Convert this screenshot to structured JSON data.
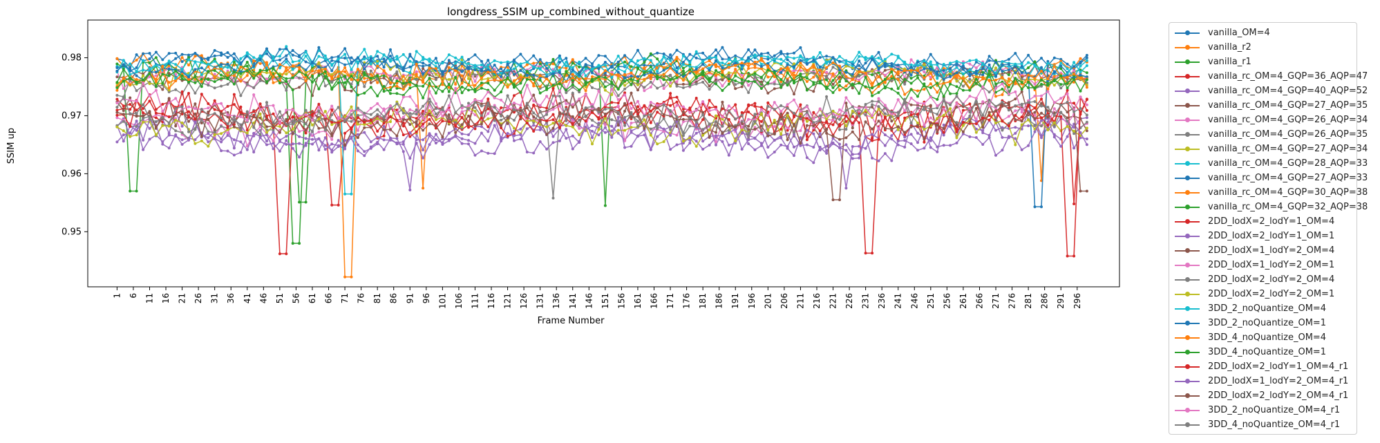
{
  "chart_data": {
    "type": "line",
    "title": "longdress_SSIM up_combined_without_quantize",
    "xlabel": "Frame Number",
    "ylabel": "SSIM up",
    "xlim": [
      -8,
      309
    ],
    "ylim": [
      0.9405,
      0.9865
    ],
    "x_ticks": [
      1,
      6,
      11,
      16,
      21,
      26,
      31,
      36,
      41,
      46,
      51,
      56,
      61,
      66,
      71,
      76,
      81,
      86,
      91,
      96,
      101,
      106,
      111,
      116,
      121,
      126,
      131,
      136,
      141,
      146,
      151,
      156,
      161,
      166,
      171,
      176,
      181,
      186,
      191,
      196,
      201,
      206,
      211,
      216,
      221,
      226,
      231,
      236,
      241,
      246,
      251,
      256,
      261,
      266,
      271,
      276,
      281,
      286,
      291,
      296
    ],
    "y_ticks": [
      0.95,
      0.96,
      0.97,
      0.98
    ],
    "x_first": 1,
    "x_last": 300,
    "grid": false,
    "legend_position": "outside-right",
    "series": [
      {
        "name": "vanilla_OM=4",
        "color": "#1f77b4",
        "mean": 0.9795,
        "spread": 0.0025,
        "dips": []
      },
      {
        "name": "vanilla_r2",
        "color": "#ff7f0e",
        "mean": 0.978,
        "spread": 0.0027,
        "dips": [
          [
            72,
            0.9422
          ],
          [
            95,
            0.9575
          ],
          [
            285,
            0.9588
          ]
        ]
      },
      {
        "name": "vanilla_r1",
        "color": "#2ca02c",
        "mean": 0.9775,
        "spread": 0.0028,
        "dips": [
          [
            6,
            0.957
          ],
          [
            56,
            0.948
          ],
          [
            151,
            0.9545
          ]
        ]
      },
      {
        "name": "vanilla_rc_OM=4_GQP=36_AQP=47",
        "color": "#d62728",
        "mean": 0.97,
        "spread": 0.004,
        "dips": [
          [
            52,
            0.9462
          ],
          [
            68,
            0.9546
          ],
          [
            232,
            0.9463
          ]
        ]
      },
      {
        "name": "vanilla_rc_OM=4_GQP=40_AQP=52",
        "color": "#9467bd",
        "mean": 0.966,
        "spread": 0.004,
        "dips": [
          [
            91,
            0.9572
          ],
          [
            225,
            0.9575
          ]
        ]
      },
      {
        "name": "vanilla_rc_OM=4_GQP=27_AQP=35",
        "color": "#8c564b",
        "mean": 0.9765,
        "spread": 0.003,
        "dips": []
      },
      {
        "name": "vanilla_rc_OM=4_GQP=26_AQP=34",
        "color": "#e377c2",
        "mean": 0.977,
        "spread": 0.0028,
        "dips": []
      },
      {
        "name": "vanilla_rc_OM=4_GQP=26_AQP=35",
        "color": "#7f7f7f",
        "mean": 0.976,
        "spread": 0.0028,
        "dips": []
      },
      {
        "name": "vanilla_rc_OM=4_GQP=27_AQP=34",
        "color": "#bcbd22",
        "mean": 0.9772,
        "spread": 0.0028,
        "dips": []
      },
      {
        "name": "vanilla_rc_OM=4_GQP=28_AQP=33",
        "color": "#17becf",
        "mean": 0.979,
        "spread": 0.0025,
        "dips": [
          [
            72,
            0.9565
          ]
        ]
      },
      {
        "name": "vanilla_rc_OM=4_GQP=27_AQP=33",
        "color": "#1f77b4",
        "mean": 0.9792,
        "spread": 0.0025,
        "dips": [
          [
            284,
            0.9543
          ]
        ]
      },
      {
        "name": "vanilla_rc_OM=4_GQP=30_AQP=38",
        "color": "#ff7f0e",
        "mean": 0.9765,
        "spread": 0.003,
        "dips": []
      },
      {
        "name": "vanilla_rc_OM=4_GQP=32_AQP=38",
        "color": "#2ca02c",
        "mean": 0.9755,
        "spread": 0.003,
        "dips": [
          [
            58,
            0.9551
          ]
        ]
      },
      {
        "name": "2DD_lodX=2_lodY=1_OM=4",
        "color": "#d62728",
        "mean": 0.9705,
        "spread": 0.004,
        "dips": [
          [
            295,
            0.9548
          ]
        ]
      },
      {
        "name": "2DD_lodX=2_lodY=1_OM=1",
        "color": "#9467bd",
        "mean": 0.967,
        "spread": 0.004,
        "dips": []
      },
      {
        "name": "2DD_lodX=1_lodY=2_OM=4",
        "color": "#8c564b",
        "mean": 0.97,
        "spread": 0.0038,
        "dips": [
          [
            222,
            0.9555
          ]
        ]
      },
      {
        "name": "2DD_lodX=1_lodY=2_OM=1",
        "color": "#e377c2",
        "mean": 0.969,
        "spread": 0.0038,
        "dips": []
      },
      {
        "name": "2DD_lodX=2_lodY=2_OM=4",
        "color": "#7f7f7f",
        "mean": 0.9695,
        "spread": 0.0038,
        "dips": [
          [
            135,
            0.9558
          ]
        ]
      },
      {
        "name": "2DD_lodX=2_lodY=2_OM=1",
        "color": "#bcbd22",
        "mean": 0.9685,
        "spread": 0.0038,
        "dips": []
      },
      {
        "name": "3DD_2_noQuantize_OM=4",
        "color": "#17becf",
        "mean": 0.9788,
        "spread": 0.0025,
        "dips": []
      },
      {
        "name": "3DD_2_noQuantize_OM=1",
        "color": "#1f77b4",
        "mean": 0.978,
        "spread": 0.0025,
        "dips": []
      },
      {
        "name": "3DD_4_noQuantize_OM=4",
        "color": "#ff7f0e",
        "mean": 0.977,
        "spread": 0.0027,
        "dips": []
      },
      {
        "name": "3DD_4_noQuantize_OM=1",
        "color": "#2ca02c",
        "mean": 0.976,
        "spread": 0.0028,
        "dips": []
      },
      {
        "name": "2DD_lodX=2_lodY=1_OM=4_r1",
        "color": "#d62728",
        "mean": 0.9695,
        "spread": 0.004,
        "dips": [
          [
            294,
            0.9458
          ]
        ]
      },
      {
        "name": "2DD_lodX=1_lodY=2_OM=4_r1",
        "color": "#9467bd",
        "mean": 0.9655,
        "spread": 0.004,
        "dips": []
      },
      {
        "name": "2DD_lodX=2_lodY=2_OM=4_r1",
        "color": "#8c564b",
        "mean": 0.969,
        "spread": 0.0038,
        "dips": [
          [
            298,
            0.957
          ]
        ]
      },
      {
        "name": "3DD_2_noQuantize_OM=4_r1",
        "color": "#e377c2",
        "mean": 0.972,
        "spread": 0.0035,
        "dips": []
      },
      {
        "name": "3DD_4_noQuantize_OM=4_r1",
        "color": "#7f7f7f",
        "mean": 0.9705,
        "spread": 0.0035,
        "dips": []
      }
    ]
  }
}
